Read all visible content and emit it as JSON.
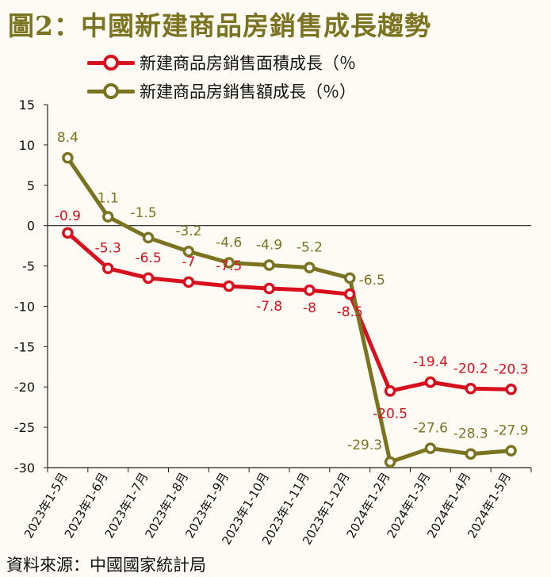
{
  "title": "圖2：中國新建商品房銷售成長趨勢",
  "source": "資料來源：中國國家統計局",
  "colors": {
    "area": "#d8101e",
    "amount": "#7b7320"
  },
  "chart_data": {
    "type": "line",
    "categories": [
      "2023年1-5月",
      "2023年1-6月",
      "2023年1-7月",
      "2023年1-8月",
      "2023年1-9月",
      "2023年1-10月",
      "2023年1-11月",
      "2023年1-12月",
      "2024年1-2月",
      "2024年1-3月",
      "2024年1-4月",
      "2024年1-5月"
    ],
    "series": [
      {
        "name": "新建商品房銷售面積成長（％",
        "color": "#d8101e",
        "values": [
          -0.9,
          -5.3,
          -6.5,
          -7,
          -7.5,
          -7.8,
          -8,
          -8.5,
          -20.5,
          -19.4,
          -20.2,
          -20.3
        ],
        "labels": [
          "-0.9",
          "-5.3",
          "-6.5",
          "-7",
          "-7.5",
          "-7.8",
          "-8",
          "-8.5",
          "-20.5",
          "-19.4",
          "-20.2",
          "-20.3"
        ]
      },
      {
        "name": "新建商品房銷售額成長（％）",
        "color": "#7b7320",
        "values": [
          8.4,
          1.1,
          -1.5,
          -3.2,
          -4.6,
          -4.9,
          -5.2,
          -6.5,
          -29.3,
          -27.6,
          -28.3,
          -27.9
        ],
        "labels": [
          "8.4",
          "1.1",
          "-1.5",
          "-3.2",
          "-4.6",
          "-4.9",
          "-5.2",
          "-6.5",
          "-29.3",
          "-27.6",
          "-28.3",
          "-27.9"
        ]
      }
    ],
    "ylim": [
      -30,
      15
    ],
    "yticks": [
      "15",
      "10",
      "5",
      "0",
      "-5",
      "-10",
      "-15",
      "-20",
      "-25",
      "-30"
    ],
    "xlabel": "",
    "ylabel": "",
    "grid": false,
    "legend": "top"
  }
}
